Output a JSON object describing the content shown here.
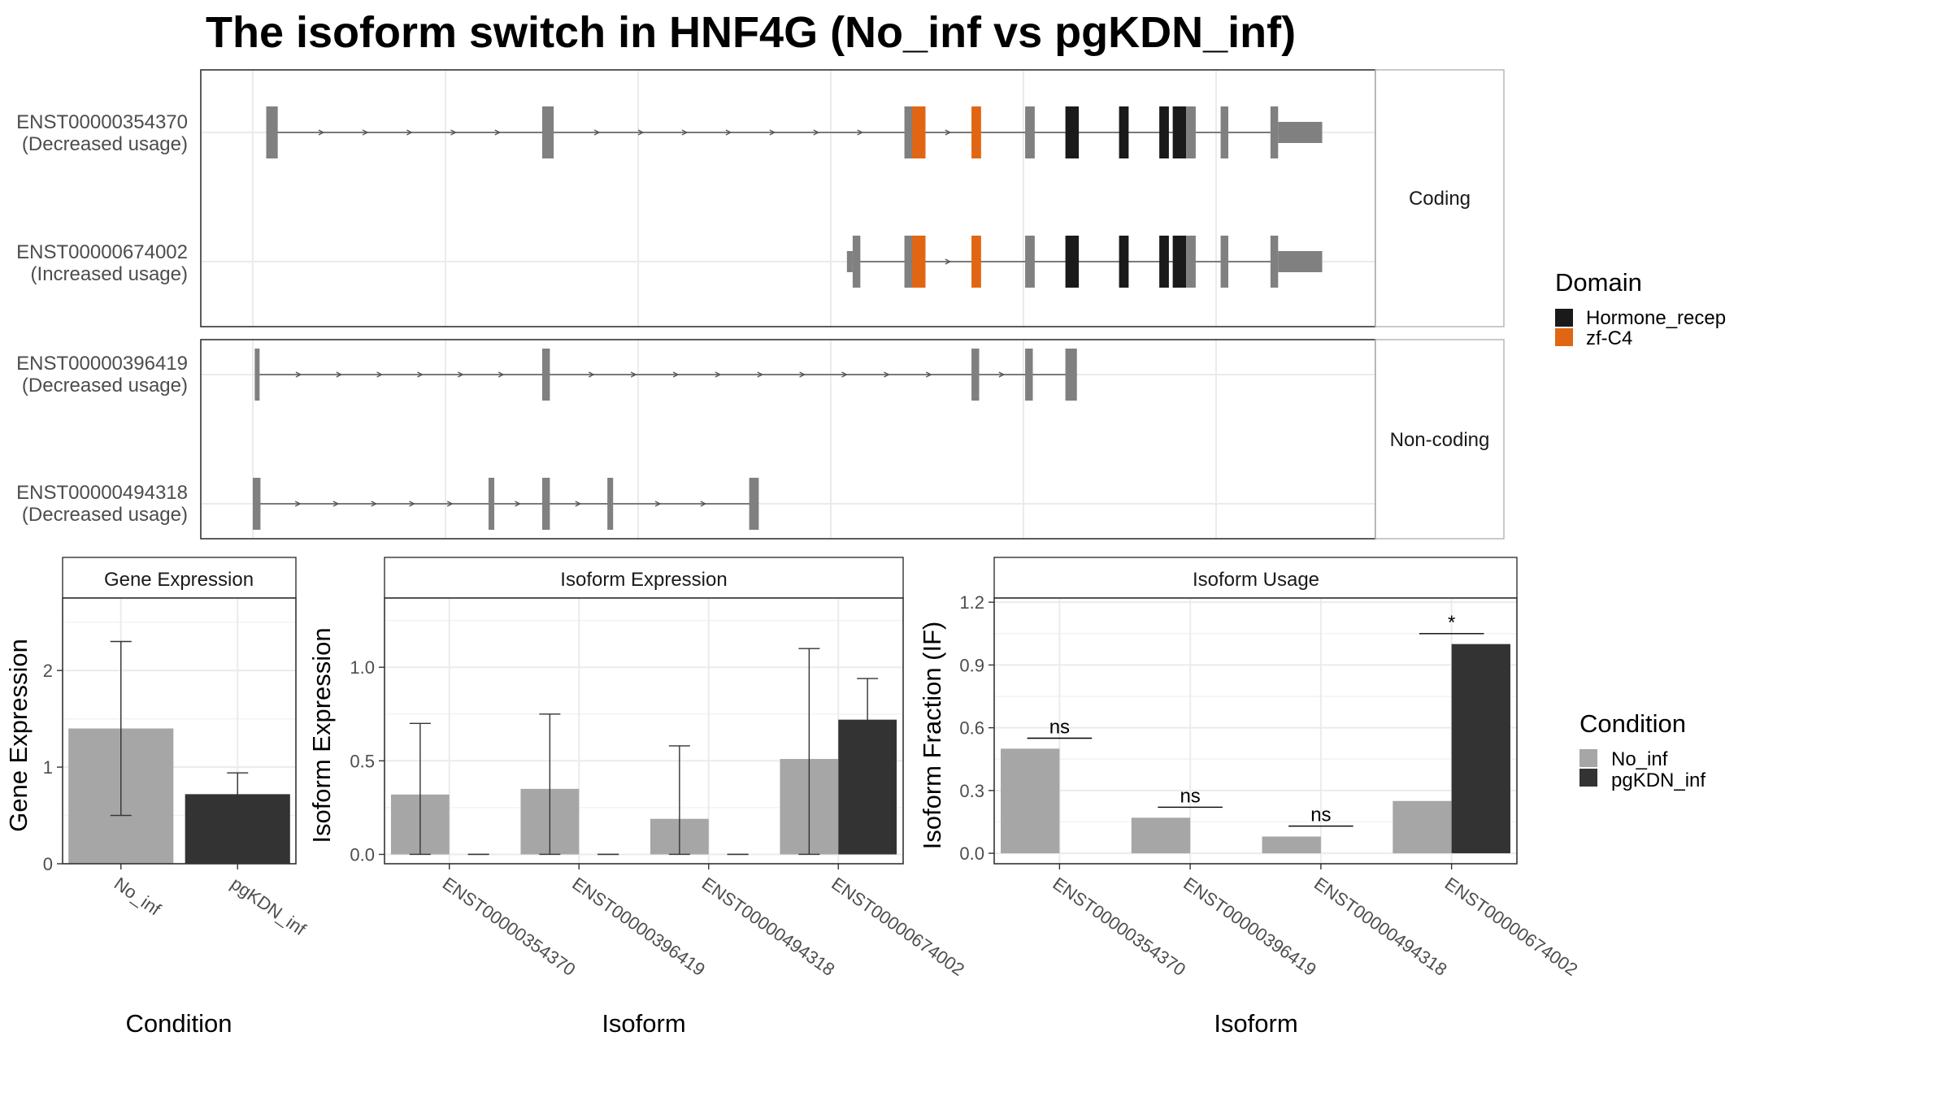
{
  "title": "The isoform switch in HNF4G (No_inf vs pgKDN_inf)",
  "colors": {
    "intron": "#555555",
    "exon": "#808080",
    "hormone_recep": "#1a1a1a",
    "zf_c4": "#e06614",
    "no_inf": "#a6a6a6",
    "pgkdn_inf": "#333333",
    "grid": "#ebebeb",
    "panel_border": "#333333",
    "strip_border": "#b3b3b3"
  },
  "chart_data": [
    {
      "type": "gene-structure",
      "facets": [
        {
          "label": "Coding",
          "transcripts": [
            {
              "id": "ENST00000354370",
              "usage": "(Decreased usage)",
              "start": 0.7,
              "end": 54.5,
              "exons": [
                {
                  "s": 0.7,
                  "e": 1.3,
                  "h": "s"
                },
                {
                  "s": 15.1,
                  "e": 15.7,
                  "h": "s"
                },
                {
                  "s": 34.0,
                  "e": 34.4,
                  "h": "s"
                },
                {
                  "s": 34.4,
                  "e": 35.1,
                  "h": "t",
                  "d": "zf-C4"
                },
                {
                  "s": 37.5,
                  "e": 38.0,
                  "h": "t",
                  "d": "zf-C4"
                },
                {
                  "s": 40.3,
                  "e": 40.8,
                  "h": "t"
                },
                {
                  "s": 42.4,
                  "e": 43.1,
                  "h": "t",
                  "d": "Hormone_recep"
                },
                {
                  "s": 45.2,
                  "e": 45.7,
                  "h": "t",
                  "d": "Hormone_recep"
                },
                {
                  "s": 47.3,
                  "e": 47.8,
                  "h": "t",
                  "d": "Hormone_recep"
                },
                {
                  "s": 48.0,
                  "e": 48.7,
                  "h": "t",
                  "d": "Hormone_recep"
                },
                {
                  "s": 48.7,
                  "e": 49.2,
                  "h": "t"
                },
                {
                  "s": 50.5,
                  "e": 50.9,
                  "h": "t"
                },
                {
                  "s": 53.1,
                  "e": 53.5,
                  "h": "t"
                },
                {
                  "s": 53.5,
                  "e": 55.8,
                  "h": "m"
                }
              ]
            },
            {
              "id": "ENST00000674002",
              "usage": "(Increased usage)",
              "start": 31.2,
              "end": 54.5,
              "exons": [
                {
                  "s": 31.0,
                  "e": 31.3,
                  "h": "m"
                },
                {
                  "s": 31.3,
                  "e": 31.7,
                  "h": "t"
                },
                {
                  "s": 34.0,
                  "e": 34.4,
                  "h": "t"
                },
                {
                  "s": 34.4,
                  "e": 35.1,
                  "h": "t",
                  "d": "zf-C4"
                },
                {
                  "s": 37.5,
                  "e": 38.0,
                  "h": "t",
                  "d": "zf-C4"
                },
                {
                  "s": 40.3,
                  "e": 40.8,
                  "h": "t"
                },
                {
                  "s": 42.4,
                  "e": 43.1,
                  "h": "t",
                  "d": "Hormone_recep"
                },
                {
                  "s": 45.2,
                  "e": 45.7,
                  "h": "t",
                  "d": "Hormone_recep"
                },
                {
                  "s": 47.3,
                  "e": 47.8,
                  "h": "t",
                  "d": "Hormone_recep"
                },
                {
                  "s": 48.0,
                  "e": 48.7,
                  "h": "t",
                  "d": "Hormone_recep"
                },
                {
                  "s": 48.7,
                  "e": 49.2,
                  "h": "t"
                },
                {
                  "s": 50.5,
                  "e": 50.9,
                  "h": "t"
                },
                {
                  "s": 53.1,
                  "e": 53.5,
                  "h": "t"
                },
                {
                  "s": 53.5,
                  "e": 55.8,
                  "h": "m"
                }
              ]
            }
          ]
        },
        {
          "label": "Non-coding",
          "transcripts": [
            {
              "id": "ENST00000396419",
              "usage": "(Decreased usage)",
              "start": 0.2,
              "end": 43.0,
              "exons": [
                {
                  "s": 0.1,
                  "e": 0.3,
                  "h": "s"
                },
                {
                  "s": 15.1,
                  "e": 15.5,
                  "h": "s"
                },
                {
                  "s": 37.5,
                  "e": 37.9,
                  "h": "s"
                },
                {
                  "s": 40.3,
                  "e": 40.7,
                  "h": "s"
                },
                {
                  "s": 42.4,
                  "e": 43.0,
                  "h": "s"
                }
              ]
            },
            {
              "id": "ENST00000494318",
              "usage": "(Decreased usage)",
              "start": 0.2,
              "end": 26.3,
              "exons": [
                {
                  "s": 0.0,
                  "e": 0.4,
                  "h": "s"
                },
                {
                  "s": 12.3,
                  "e": 12.6,
                  "h": "s"
                },
                {
                  "s": 15.1,
                  "e": 15.5,
                  "h": "s"
                },
                {
                  "s": 18.5,
                  "e": 18.8,
                  "h": "s"
                },
                {
                  "s": 25.9,
                  "e": 26.4,
                  "h": "s"
                }
              ]
            }
          ]
        }
      ],
      "legend": {
        "title": "Domain",
        "items": [
          {
            "label": "Hormone_recep",
            "color": "#1a1a1a"
          },
          {
            "label": "zf-C4",
            "color": "#e06614"
          }
        ]
      }
    },
    {
      "type": "bar",
      "strip": "Gene Expression",
      "xlabel": "Condition",
      "ylabel": "Gene Expression",
      "ylim": [
        0,
        2.75
      ],
      "yticks": [
        "0",
        "1",
        "2"
      ],
      "categories": [
        "No_inf",
        "pgKDN_inf"
      ],
      "values": [
        1.4,
        0.72
      ],
      "errors": [
        [
          0.5,
          2.3
        ],
        [
          0.5,
          0.94
        ]
      ],
      "colors": [
        "#a6a6a6",
        "#333333"
      ]
    },
    {
      "type": "bar",
      "strip": "Isoform Expression",
      "xlabel": "Isoform",
      "ylabel": "Isoform Expression",
      "ylim": [
        -0.05,
        1.37
      ],
      "yticks": [
        "0.0",
        "0.5",
        "1.0"
      ],
      "categories": [
        "ENST00000354370",
        "ENST00000396419",
        "ENST00000494318",
        "ENST00000674002"
      ],
      "series": [
        {
          "name": "No_inf",
          "values": [
            0.32,
            0.35,
            0.19,
            0.51
          ],
          "errors": [
            [
              0.0,
              0.7
            ],
            [
              0.0,
              0.75
            ],
            [
              0.0,
              0.58
            ],
            [
              0.0,
              1.1
            ]
          ]
        },
        {
          "name": "pgKDN_inf",
          "values": [
            0.0,
            0.0,
            0.0,
            0.72
          ],
          "errors": [
            [
              0.0,
              0.0
            ],
            [
              0.0,
              0.0
            ],
            [
              0.0,
              0.0
            ],
            [
              0.5,
              0.94
            ]
          ]
        }
      ]
    },
    {
      "type": "bar",
      "strip": "Isoform Usage",
      "xlabel": "Isoform",
      "ylabel": "Isoform Fraction (IF)",
      "ylim": [
        -0.05,
        1.22
      ],
      "yticks": [
        "0.0",
        "0.3",
        "0.6",
        "0.9",
        "1.2"
      ],
      "categories": [
        "ENST00000354370",
        "ENST00000396419",
        "ENST00000494318",
        "ENST00000674002"
      ],
      "series": [
        {
          "name": "No_inf",
          "values": [
            0.5,
            0.17,
            0.08,
            0.25
          ]
        },
        {
          "name": "pgKDN_inf",
          "values": [
            0.0,
            0.0,
            0.0,
            1.0
          ]
        }
      ],
      "significance": [
        {
          "label": "ns",
          "y": 0.55
        },
        {
          "label": "ns",
          "y": 0.22
        },
        {
          "label": "ns",
          "y": 0.13
        },
        {
          "label": "*",
          "y": 1.05
        }
      ]
    }
  ],
  "condition_legend": {
    "title": "Condition",
    "items": [
      {
        "label": "No_inf",
        "color": "#a6a6a6"
      },
      {
        "label": "pgKDN_inf",
        "color": "#333333"
      }
    ]
  }
}
